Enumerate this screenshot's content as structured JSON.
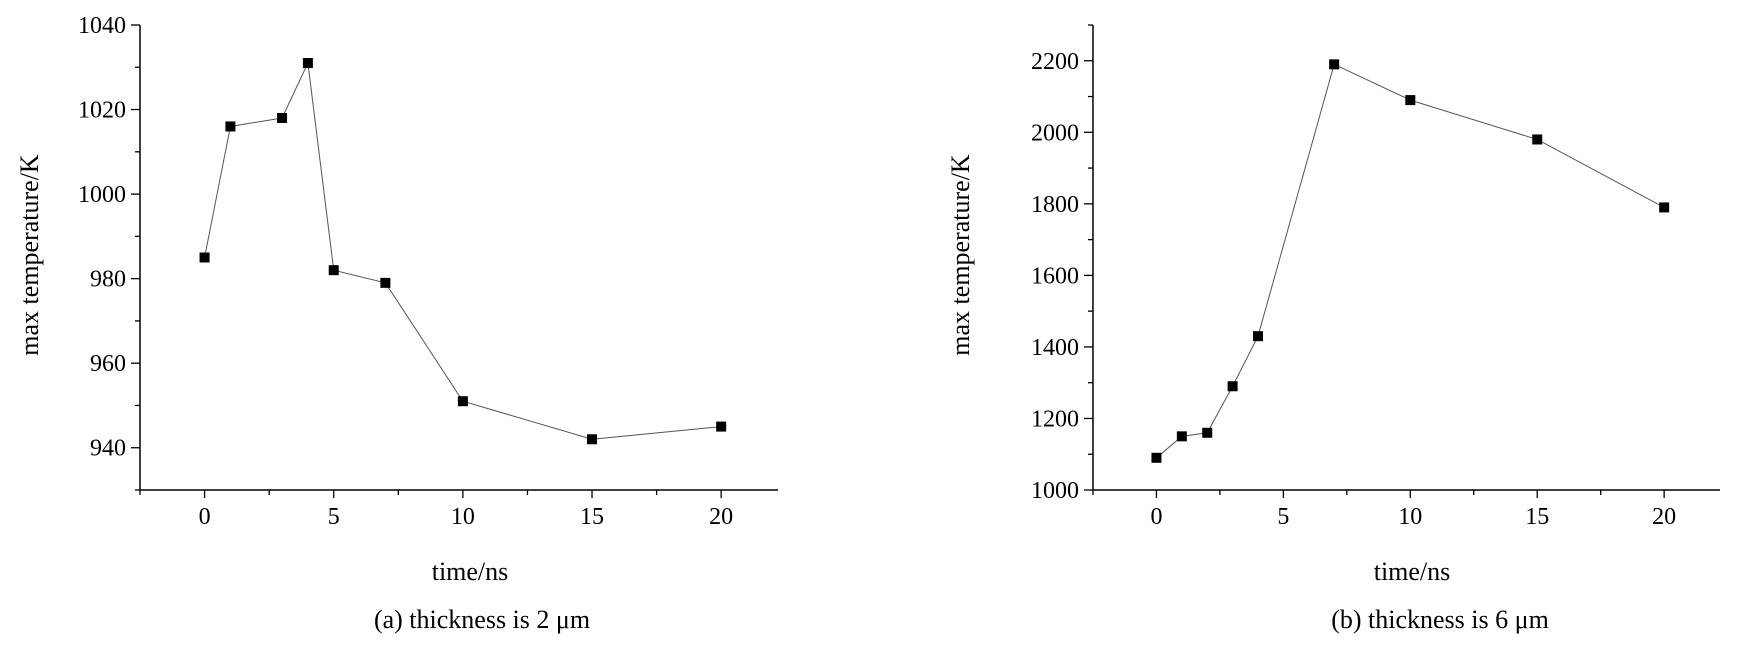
{
  "chart_data": [
    {
      "type": "line",
      "caption": "(a) thickness is 2 μm",
      "xlabel": "time/ns",
      "ylabel": "max temperature/K",
      "xlim": [
        -2.5,
        22.2
      ],
      "ylim": [
        930,
        1040
      ],
      "xticks": [
        0,
        5,
        10,
        15,
        20
      ],
      "yticks": [
        940,
        960,
        980,
        1000,
        1020,
        1040
      ],
      "series": [
        {
          "x": [
            0,
            1,
            3,
            4,
            5,
            7,
            10,
            15,
            20
          ],
          "y": [
            985,
            1016,
            1018,
            1031,
            982,
            979,
            951,
            942,
            945
          ]
        }
      ],
      "marker": "square",
      "line_color": "#555555",
      "marker_color": "#000000"
    },
    {
      "type": "line",
      "caption": "(b) thickness is 6 μm",
      "xlabel": "time/ns",
      "ylabel": "max temperature/K",
      "xlim": [
        -2.5,
        22.2
      ],
      "ylim": [
        1000,
        2300
      ],
      "xticks": [
        0,
        5,
        10,
        15,
        20
      ],
      "yticks": [
        1000,
        1200,
        1400,
        1600,
        1800,
        2000,
        2200
      ],
      "series": [
        {
          "x": [
            0,
            1,
            2,
            3,
            4,
            7,
            10,
            15,
            20
          ],
          "y": [
            1090,
            1150,
            1160,
            1290,
            1430,
            2190,
            2090,
            1980,
            1790
          ]
        }
      ],
      "marker": "square",
      "line_color": "#555555",
      "marker_color": "#000000"
    }
  ]
}
